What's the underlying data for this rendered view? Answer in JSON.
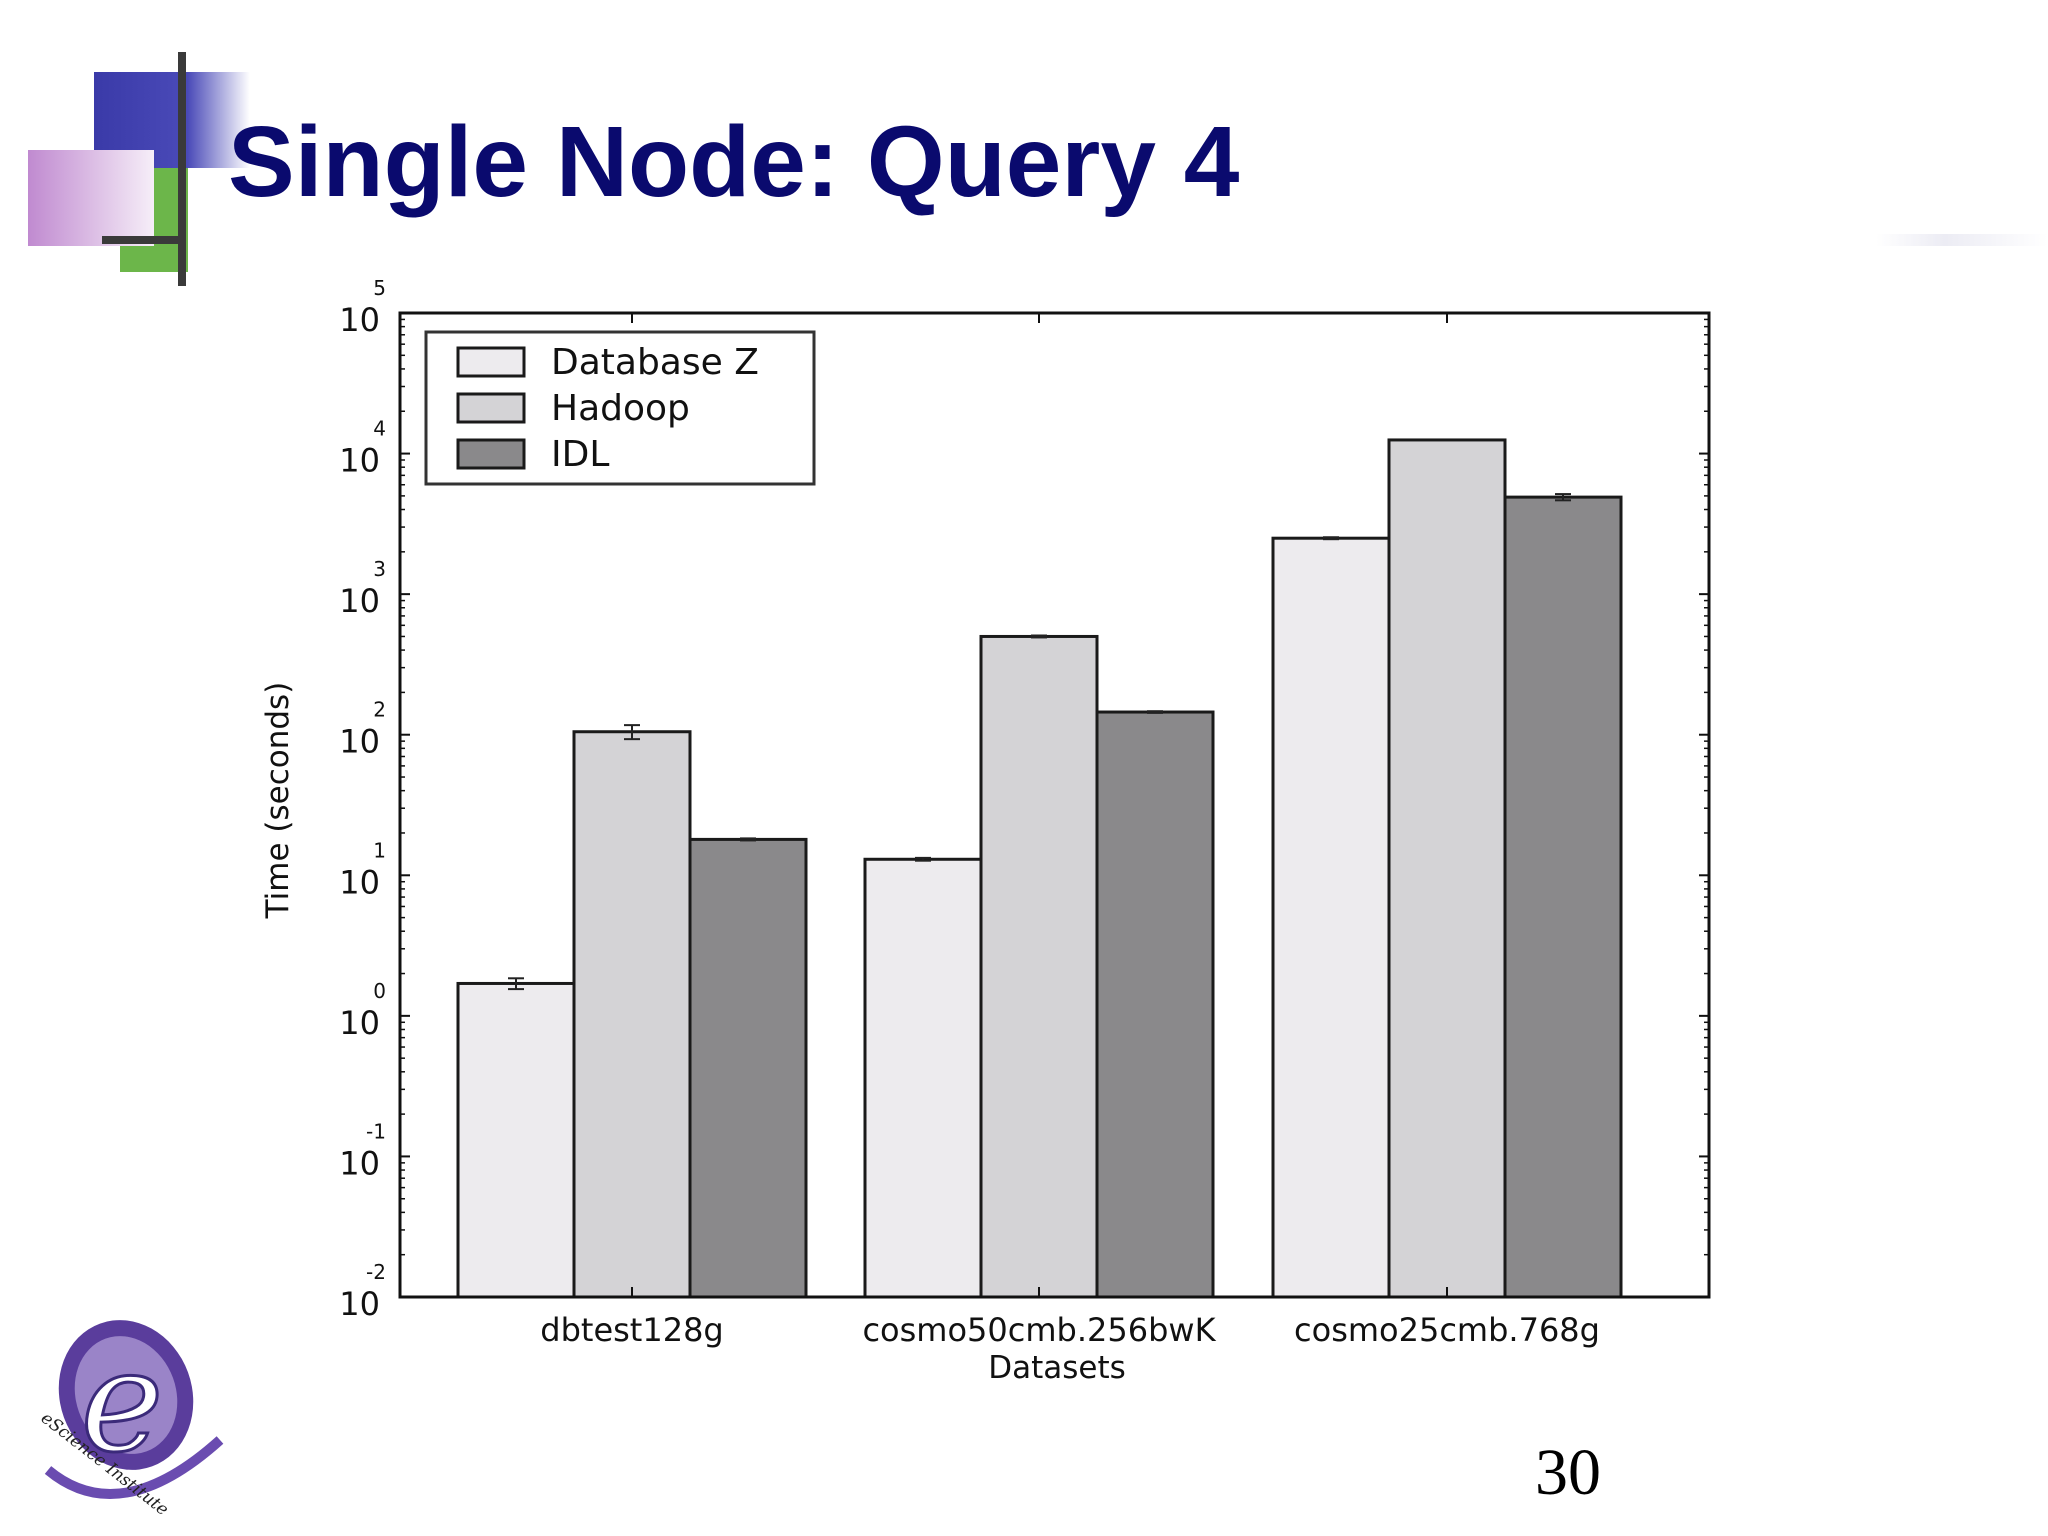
{
  "slide": {
    "title": "Single Node: Query 4",
    "page_number": "30",
    "logo_text": "eScience Institute"
  },
  "colors": {
    "title": "#0a0a6e",
    "accent_blue": "#3a3aa8",
    "accent_green": "#6cb64a",
    "accent_purple": "#c9a6d9"
  },
  "chart_data": {
    "type": "bar",
    "title": "",
    "xlabel": "Datasets",
    "ylabel": "Time (seconds)",
    "yscale": "log",
    "ylim": [
      0.01,
      100000
    ],
    "yticks": [
      {
        "base": "10",
        "exp": "-2"
      },
      {
        "base": "10",
        "exp": "-1"
      },
      {
        "base": "10",
        "exp": "0"
      },
      {
        "base": "10",
        "exp": "1"
      },
      {
        "base": "10",
        "exp": "2"
      },
      {
        "base": "10",
        "exp": "3"
      },
      {
        "base": "10",
        "exp": "4"
      },
      {
        "base": "10",
        "exp": "5"
      }
    ],
    "categories": [
      "dbtest128g",
      "cosmo50cmb.256bwK",
      "cosmo25cmb.768g"
    ],
    "series": [
      {
        "name": "Database Z",
        "color": "#edebee",
        "values": [
          1.7,
          13,
          2500
        ],
        "errors": [
          0.15,
          0.3,
          40
        ]
      },
      {
        "name": "Hadoop",
        "color": "#d4d3d6",
        "values": [
          105,
          500,
          12500
        ],
        "errors": [
          12,
          8,
          0
        ]
      },
      {
        "name": "IDL",
        "color": "#8a898b",
        "values": [
          18,
          145,
          4900
        ],
        "errors": [
          0.3,
          2,
          250
        ]
      }
    ],
    "legend_position": "top-left",
    "grid": false
  }
}
